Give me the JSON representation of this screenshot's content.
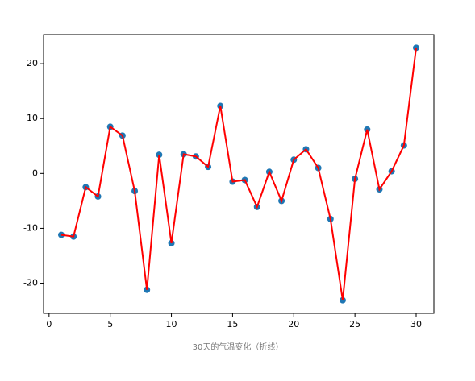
{
  "chart_data": {
    "type": "line",
    "caption": "30天的气温变化（折线）",
    "x": [
      1,
      2,
      3,
      4,
      5,
      6,
      7,
      8,
      9,
      10,
      11,
      12,
      13,
      14,
      15,
      16,
      17,
      18,
      19,
      20,
      21,
      22,
      23,
      24,
      25,
      26,
      27,
      28,
      29,
      30
    ],
    "series": [
      {
        "values": [
          -11.2,
          -11.5,
          -2.5,
          -4.2,
          8.5,
          6.9,
          -3.2,
          -21.2,
          3.4,
          -12.7,
          3.5,
          3.1,
          1.2,
          12.3,
          -1.5,
          -1.2,
          -6.1,
          0.3,
          -5.0,
          2.5,
          4.4,
          1.0,
          -8.3,
          -23.1,
          -1.0,
          8.0,
          -2.9,
          0.4,
          5.1,
          22.9
        ],
        "color": "#ff0000",
        "marker_color": "#1f77b4"
      }
    ],
    "xlim": [
      -0.45,
      31.45
    ],
    "ylim": [
      -25.5,
      25.3
    ],
    "xticks": [
      0,
      5,
      10,
      15,
      20,
      25,
      30
    ],
    "yticks": [
      -20,
      -10,
      0,
      10,
      20
    ]
  }
}
